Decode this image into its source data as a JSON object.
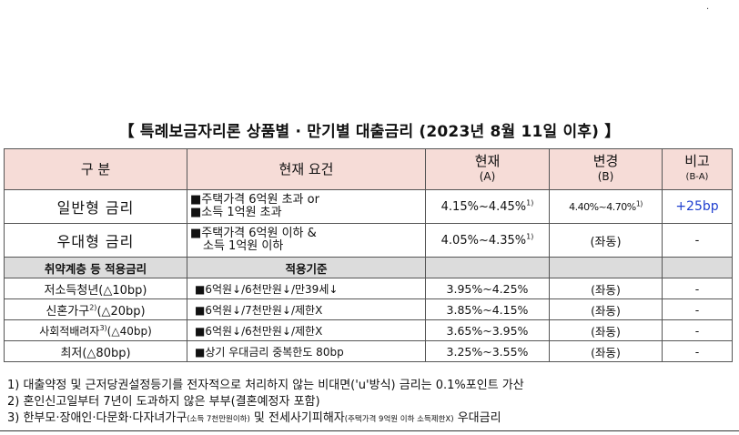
{
  "corner_mark": ".",
  "title": "【 특례보금자리론 상품별 · 만기별 대출금리 (2023년 8월 11일 이후) 】",
  "table": {
    "headers": {
      "category": "구 분",
      "requirement": "현재 요건",
      "current": "현재",
      "current_sub": "(A)",
      "changed": "변경",
      "changed_sub": "(B)",
      "note": "비고",
      "note_sub": "(B-A)"
    },
    "general": {
      "category": "일반형 금리",
      "req_line1": "■주택가격 6억원 초과 or",
      "req_line2": "■소득 1억원 초과",
      "current": "4.15%~4.45%",
      "current_sup": "1)",
      "changed": "4.40%~4.70%",
      "changed_sup": "1)",
      "note": "+25bp"
    },
    "preferential": {
      "category": "우대형 금리",
      "req_line1": "■주택가격 6억원 이하 &",
      "req_line2": "소득 1억원 이하",
      "current": "4.05%~4.35%",
      "current_sup": "1)",
      "changed": "(좌동)",
      "note": "-"
    },
    "section": {
      "label": "취약계층 등 적용금리",
      "criteria": "적용기준"
    },
    "rows": [
      {
        "category": "저소득청년(△10bp)",
        "sup": "",
        "criteria": "■6억원↓/6천만원↓/만39세↓",
        "current": "3.95%~4.25%",
        "changed": "(좌동)",
        "note": "-"
      },
      {
        "category_pre": "신혼가구",
        "sup": "2)",
        "category_post": "(△20bp)",
        "criteria": "■6억원↓/7천만원↓/제한X",
        "current": "3.85%~4.15%",
        "changed": "(좌동)",
        "note": "-"
      },
      {
        "category_pre": "사회적배려자",
        "sup": "3)",
        "category_post": "(△40bp)",
        "criteria": "■6억원↓/6천만원↓/제한X",
        "current": "3.65%~3.95%",
        "changed": "(좌동)",
        "note": "-"
      },
      {
        "category": "최저(△80bp)",
        "sup": "",
        "criteria": "■상기 우대금리 중복한도 80bp",
        "current": "3.25%~3.55%",
        "changed": "(좌동)",
        "note": "-"
      }
    ]
  },
  "footnotes": {
    "f1": "1) 대출약정 및 근저당권설정등기를 전자적으로 처리하지 않는 비대면('u'방식) 금리는 0.1%포인트 가산",
    "f2": "2) 혼인신고일부터 7년이 도과하지 않은 부부(결혼예정자 포함)",
    "f3_a": "3) 한부모·장애인·다문화·다자녀가구",
    "f3_b": "(소득 7천만원이하)",
    "f3_c": " 및 전세사기피해자",
    "f3_d": "(주택가격 9억원 이하 소득제한X)",
    "f3_e": " 우대금리"
  }
}
